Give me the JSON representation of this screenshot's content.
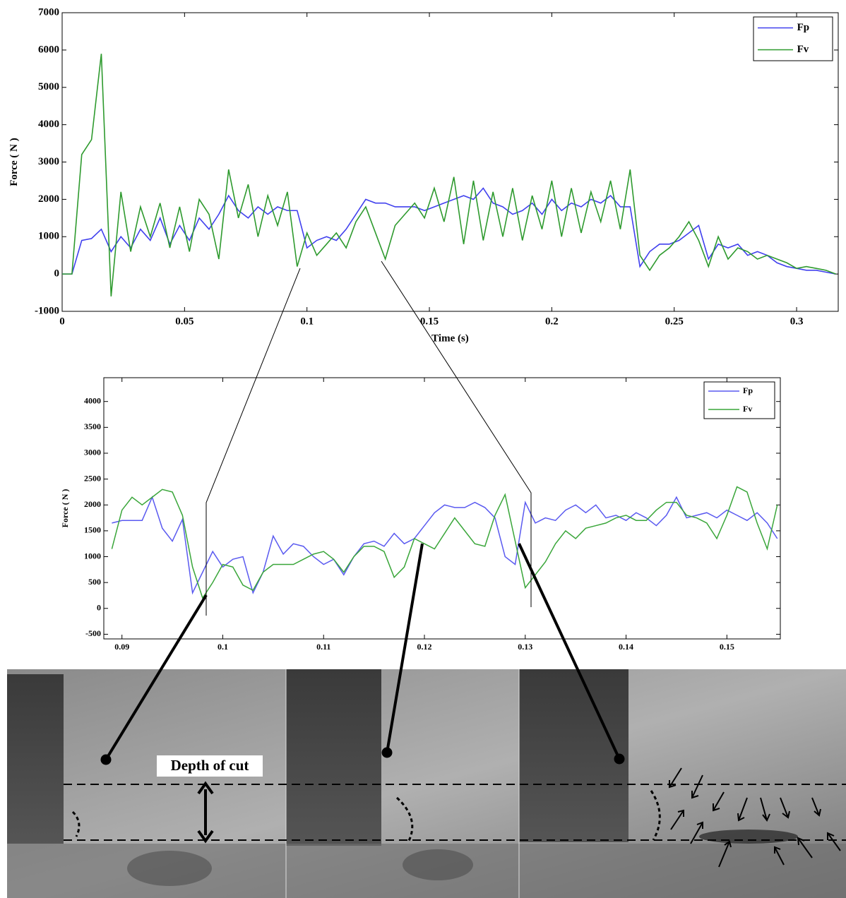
{
  "chart_data": [
    {
      "type": "line",
      "xlabel": "Time (s)",
      "ylabel": "Force ( N )",
      "xlim": [
        0,
        0.317
      ],
      "ylim": [
        -1000,
        7000
      ],
      "xticks": [
        0,
        0.05,
        0.1,
        0.15,
        0.2,
        0.25,
        0.3
      ],
      "yticks": [
        -1000,
        0,
        1000,
        2000,
        3000,
        4000,
        5000,
        6000,
        7000
      ],
      "legend": "upper right",
      "x": [
        0,
        0.004,
        0.008,
        0.012,
        0.016,
        0.02,
        0.024,
        0.028,
        0.032,
        0.036,
        0.04,
        0.044,
        0.048,
        0.052,
        0.056,
        0.06,
        0.064,
        0.068,
        0.072,
        0.076,
        0.08,
        0.084,
        0.088,
        0.092,
        0.096,
        0.1,
        0.104,
        0.108,
        0.112,
        0.116,
        0.12,
        0.124,
        0.128,
        0.132,
        0.136,
        0.14,
        0.144,
        0.148,
        0.152,
        0.156,
        0.16,
        0.164,
        0.168,
        0.172,
        0.176,
        0.18,
        0.184,
        0.188,
        0.192,
        0.196,
        0.2,
        0.204,
        0.208,
        0.212,
        0.216,
        0.22,
        0.224,
        0.228,
        0.232,
        0.236,
        0.24,
        0.244,
        0.248,
        0.252,
        0.256,
        0.26,
        0.264,
        0.268,
        0.272,
        0.276,
        0.28,
        0.284,
        0.288,
        0.292,
        0.296,
        0.3,
        0.304,
        0.308,
        0.312,
        0.316
      ],
      "series": [
        {
          "name": "Fp",
          "color": "#4040ee",
          "values": [
            0,
            0,
            900,
            950,
            1200,
            600,
            1000,
            700,
            1200,
            900,
            1500,
            800,
            1300,
            900,
            1500,
            1200,
            1600,
            2100,
            1700,
            1500,
            1800,
            1600,
            1800,
            1700,
            1700,
            700,
            900,
            1000,
            900,
            1200,
            1600,
            2000,
            1900,
            1900,
            1800,
            1800,
            1800,
            1700,
            1800,
            1900,
            2000,
            2100,
            2000,
            2300,
            1900,
            1800,
            1600,
            1700,
            1900,
            1600,
            2000,
            1700,
            1900,
            1800,
            2000,
            1900,
            2100,
            1800,
            1800,
            200,
            600,
            800,
            800,
            900,
            1100,
            1300,
            400,
            800,
            700,
            800,
            500,
            600,
            500,
            300,
            200,
            150,
            100,
            100,
            50,
            0
          ]
        },
        {
          "name": "Fv",
          "color": "#2e9a2e",
          "values": [
            0,
            0,
            3200,
            3600,
            5900,
            -600,
            2200,
            600,
            1800,
            1000,
            1900,
            700,
            1800,
            600,
            2000,
            1600,
            400,
            2800,
            1500,
            2400,
            1000,
            2100,
            1300,
            2200,
            200,
            1100,
            500,
            800,
            1100,
            700,
            1400,
            1800,
            1100,
            400,
            1300,
            1600,
            1900,
            1500,
            2300,
            1400,
            2600,
            800,
            2500,
            900,
            2200,
            1000,
            2300,
            900,
            2100,
            1200,
            2500,
            1000,
            2300,
            1100,
            2200,
            1400,
            2500,
            1200,
            2800,
            500,
            100,
            500,
            700,
            1000,
            1400,
            900,
            200,
            1000,
            400,
            700,
            600,
            400,
            500,
            400,
            300,
            150,
            200,
            150,
            100,
            0
          ]
        }
      ]
    },
    {
      "type": "line",
      "ylabel": "Force ( N )",
      "xlim": [
        0.0882,
        0.1553
      ],
      "ylim": [
        -590,
        4460
      ],
      "xticks": [
        0.09,
        0.1,
        0.11,
        0.12,
        0.13,
        0.14,
        0.15
      ],
      "yticks": [
        -500,
        0,
        500,
        1000,
        1500,
        2000,
        2500,
        3000,
        3500,
        4000
      ],
      "legend": "upper right",
      "x": [
        0.089,
        0.09,
        0.091,
        0.092,
        0.093,
        0.094,
        0.095,
        0.096,
        0.097,
        0.098,
        0.099,
        0.1,
        0.101,
        0.102,
        0.103,
        0.104,
        0.105,
        0.106,
        0.107,
        0.108,
        0.109,
        0.11,
        0.111,
        0.112,
        0.113,
        0.114,
        0.115,
        0.116,
        0.117,
        0.118,
        0.119,
        0.12,
        0.121,
        0.122,
        0.123,
        0.124,
        0.125,
        0.126,
        0.127,
        0.128,
        0.129,
        0.13,
        0.131,
        0.132,
        0.133,
        0.134,
        0.135,
        0.136,
        0.137,
        0.138,
        0.139,
        0.14,
        0.141,
        0.142,
        0.143,
        0.144,
        0.145,
        0.146,
        0.147,
        0.148,
        0.149,
        0.15,
        0.151,
        0.152,
        0.153,
        0.154,
        0.155
      ],
      "series": [
        {
          "name": "Fp",
          "color": "#5a5af0",
          "values": [
            1650,
            1700,
            1700,
            1700,
            2150,
            1550,
            1300,
            1720,
            300,
            700,
            1100,
            800,
            950,
            1000,
            300,
            700,
            1400,
            1050,
            1250,
            1200,
            1000,
            850,
            950,
            650,
            1000,
            1250,
            1300,
            1200,
            1450,
            1250,
            1350,
            1600,
            1850,
            2000,
            1950,
            1950,
            2050,
            1950,
            1750,
            1000,
            850,
            2050,
            1650,
            1750,
            1700,
            1900,
            2000,
            1850,
            2000,
            1750,
            1800,
            1700,
            1850,
            1750,
            1600,
            1800,
            2150,
            1750,
            1800,
            1850,
            1750,
            1900,
            1800,
            1700,
            1850,
            1650,
            1350
          ]
        },
        {
          "name": "Fv",
          "color": "#3aa63a",
          "values": [
            1150,
            1900,
            2150,
            2000,
            2150,
            2300,
            2250,
            1800,
            800,
            200,
            500,
            850,
            800,
            450,
            350,
            700,
            850,
            850,
            850,
            950,
            1050,
            1100,
            950,
            700,
            1000,
            1200,
            1200,
            1100,
            600,
            800,
            1350,
            1250,
            1150,
            1450,
            1750,
            1500,
            1250,
            1200,
            1800,
            2200,
            1300,
            400,
            650,
            900,
            1250,
            1500,
            1350,
            1550,
            1600,
            1650,
            1750,
            1800,
            1700,
            1700,
            1900,
            2050,
            2050,
            1800,
            1750,
            1650,
            1350,
            1800,
            2350,
            2250,
            1650,
            1150,
            2000
          ]
        }
      ]
    }
  ],
  "photo": {
    "label": "Depth of cut"
  }
}
